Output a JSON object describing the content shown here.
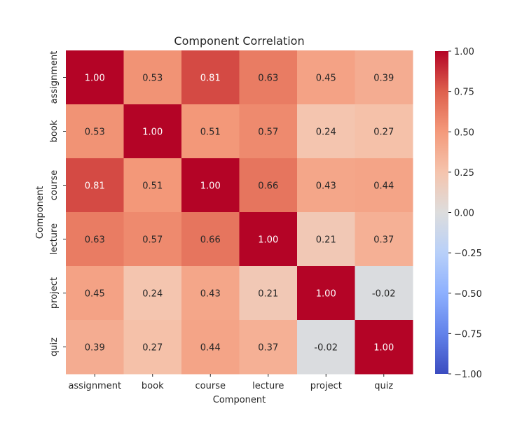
{
  "chart_data": {
    "type": "heatmap",
    "title": "Component Correlation",
    "xlabel": "Component",
    "ylabel": "Component",
    "x_categories": [
      "assignment",
      "book",
      "course",
      "lecture",
      "project",
      "quiz"
    ],
    "y_categories": [
      "assignment",
      "book",
      "course",
      "lecture",
      "project",
      "quiz"
    ],
    "values": [
      [
        1.0,
        0.53,
        0.81,
        0.63,
        0.45,
        0.39
      ],
      [
        0.53,
        1.0,
        0.51,
        0.57,
        0.24,
        0.27
      ],
      [
        0.81,
        0.51,
        1.0,
        0.66,
        0.43,
        0.44
      ],
      [
        0.63,
        0.57,
        0.66,
        1.0,
        0.21,
        0.37
      ],
      [
        0.45,
        0.24,
        0.43,
        0.21,
        1.0,
        -0.02
      ],
      [
        0.39,
        0.27,
        0.44,
        0.37,
        -0.02,
        1.0
      ]
    ],
    "value_format": "0.00",
    "colormap": "coolwarm",
    "vmin": -1.0,
    "vmax": 1.0,
    "colorbar_ticks": [
      "1.00",
      "0.75",
      "0.50",
      "0.25",
      "0.00",
      "−0.25",
      "−0.50",
      "−0.75",
      "−1.00"
    ],
    "colorbar_tick_values": [
      1.0,
      0.75,
      0.5,
      0.25,
      0.0,
      -0.25,
      -0.5,
      -0.75,
      -1.0
    ],
    "grid": false,
    "legend": "colorbar-right"
  }
}
